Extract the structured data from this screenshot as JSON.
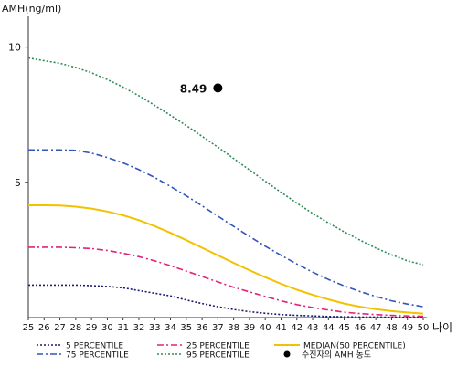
{
  "chart_data": {
    "type": "line",
    "ylabel": "AMH(ng/ml)",
    "xlabel": "나이",
    "xlim": [
      25,
      50
    ],
    "ylim": [
      0,
      11
    ],
    "x_ticks": [
      25,
      26,
      27,
      28,
      29,
      30,
      31,
      32,
      33,
      34,
      35,
      36,
      37,
      38,
      39,
      40,
      41,
      42,
      43,
      44,
      45,
      46,
      47,
      48,
      49,
      50
    ],
    "y_ticks": [
      5,
      10
    ],
    "series": [
      {
        "name": "5 PERCENTILE",
        "color": "#1a1a6e",
        "style": "dotted",
        "x": [
          25,
          26,
          27,
          28,
          29,
          30,
          31,
          32,
          33,
          34,
          35,
          36,
          37,
          38,
          39,
          40,
          41,
          42,
          43,
          44,
          45,
          46,
          47,
          48,
          49,
          50
        ],
        "values": [
          1.2,
          1.2,
          1.2,
          1.2,
          1.18,
          1.15,
          1.1,
          1.0,
          0.9,
          0.8,
          0.65,
          0.52,
          0.4,
          0.3,
          0.22,
          0.16,
          0.11,
          0.08,
          0.06,
          0.04,
          0.03,
          0.02,
          0.02,
          0.01,
          0.01,
          0.01
        ]
      },
      {
        "name": "25 PERCENTILE",
        "color": "#e0247a",
        "style": "dashdot",
        "x": [
          25,
          26,
          27,
          28,
          29,
          30,
          31,
          32,
          33,
          34,
          35,
          36,
          37,
          38,
          39,
          40,
          41,
          42,
          43,
          44,
          45,
          46,
          47,
          48,
          49,
          50
        ],
        "values": [
          2.6,
          2.6,
          2.6,
          2.58,
          2.55,
          2.48,
          2.38,
          2.25,
          2.1,
          1.92,
          1.72,
          1.52,
          1.32,
          1.12,
          0.95,
          0.78,
          0.62,
          0.48,
          0.37,
          0.28,
          0.2,
          0.15,
          0.11,
          0.08,
          0.06,
          0.05
        ]
      },
      {
        "name": "MEDIAN(50 PERCENTILE)",
        "color": "#f2c200",
        "style": "solid",
        "x": [
          25,
          26,
          27,
          28,
          29,
          30,
          31,
          32,
          33,
          34,
          35,
          36,
          37,
          38,
          39,
          40,
          41,
          42,
          43,
          44,
          45,
          46,
          47,
          48,
          49,
          50
        ],
        "values": [
          4.15,
          4.15,
          4.14,
          4.1,
          4.03,
          3.92,
          3.78,
          3.6,
          3.38,
          3.13,
          2.86,
          2.58,
          2.3,
          2.02,
          1.75,
          1.49,
          1.25,
          1.03,
          0.84,
          0.67,
          0.52,
          0.4,
          0.31,
          0.24,
          0.19,
          0.15
        ]
      },
      {
        "name": "75 PERCENTILE",
        "color": "#3355bb",
        "style": "dashdot",
        "x": [
          25,
          26,
          27,
          28,
          29,
          30,
          31,
          32,
          33,
          34,
          35,
          36,
          37,
          38,
          39,
          40,
          41,
          42,
          43,
          44,
          45,
          46,
          47,
          48,
          49,
          50
        ],
        "values": [
          6.2,
          6.2,
          6.2,
          6.18,
          6.08,
          5.92,
          5.72,
          5.47,
          5.18,
          4.85,
          4.5,
          4.13,
          3.75,
          3.37,
          3.0,
          2.64,
          2.3,
          1.98,
          1.68,
          1.41,
          1.17,
          0.96,
          0.78,
          0.62,
          0.5,
          0.4
        ]
      },
      {
        "name": "95 PERCENTILE",
        "color": "#2e8b57",
        "style": "dotted",
        "x": [
          25,
          26,
          27,
          28,
          29,
          30,
          31,
          32,
          33,
          34,
          35,
          36,
          37,
          38,
          39,
          40,
          41,
          42,
          43,
          44,
          45,
          46,
          47,
          48,
          49,
          50
        ],
        "values": [
          9.6,
          9.5,
          9.4,
          9.25,
          9.05,
          8.8,
          8.52,
          8.2,
          7.85,
          7.48,
          7.1,
          6.7,
          6.3,
          5.88,
          5.46,
          5.04,
          4.63,
          4.23,
          3.85,
          3.5,
          3.17,
          2.86,
          2.57,
          2.32,
          2.1,
          1.95
        ]
      }
    ],
    "marker": {
      "name": "수진자의 AMH 농도",
      "x": 37,
      "y": 8.49,
      "label": "8.49",
      "color": "#000000"
    },
    "legend": {
      "placement": "bottom",
      "items": [
        {
          "label": "5 PERCENTILE",
          "series": 0
        },
        {
          "label": "25 PERCENTILE",
          "series": 1
        },
        {
          "label": "MEDIAN(50 PERCENTILE)",
          "series": 2
        },
        {
          "label": "75 PERCENTILE",
          "series": 3
        },
        {
          "label": "95 PERCENTILE",
          "series": 4
        },
        {
          "label": "수진자의 AMH 농도",
          "marker": true
        }
      ]
    }
  }
}
